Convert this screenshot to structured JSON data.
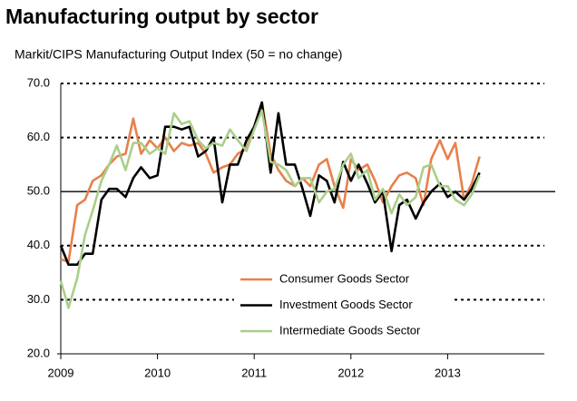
{
  "chart_data": {
    "type": "line",
    "title": "Manufacturing output by sector",
    "subtitle": "Markit/CIPS Manufacturing Output Index (50 = no change)",
    "x": [
      2009,
      2009.08,
      2009.17,
      2009.25,
      2009.33,
      2009.42,
      2009.5,
      2009.58,
      2009.67,
      2009.75,
      2009.83,
      2009.92,
      2010,
      2010.08,
      2010.17,
      2010.25,
      2010.33,
      2010.42,
      2010.5,
      2010.58,
      2010.67,
      2010.75,
      2010.83,
      2010.92,
      2011,
      2011.08,
      2011.17,
      2011.25,
      2011.33,
      2011.42,
      2011.5,
      2011.58,
      2011.67,
      2011.75,
      2011.83,
      2011.92,
      2012,
      2012.08,
      2012.17,
      2012.25,
      2012.33,
      2012.42,
      2012.5,
      2012.58,
      2012.67,
      2012.75,
      2012.83,
      2012.92,
      2013,
      2013.08,
      2013.17,
      2013.25,
      2013.33
    ],
    "series": [
      {
        "name": "Consumer Goods Sector",
        "color": "#e8804a",
        "values": [
          37.5,
          37,
          47.5,
          48.5,
          52,
          53,
          55,
          56.5,
          57,
          63.5,
          57,
          59.5,
          58,
          60,
          57.5,
          59,
          58.5,
          59,
          57,
          53.5,
          54.5,
          55,
          57,
          58,
          62,
          66.5,
          57,
          54,
          52,
          51,
          52.5,
          51,
          55,
          56,
          51,
          47,
          56,
          54,
          55,
          52,
          48,
          51,
          53,
          53.5,
          52.5,
          47.5,
          56,
          59.5,
          56,
          59,
          48.5,
          51.5,
          56.5
        ]
      },
      {
        "name": "Investment Goods Sector",
        "color": "#000000",
        "values": [
          40,
          36.5,
          36.5,
          38.5,
          38.5,
          48.5,
          50.5,
          50.5,
          49,
          52.5,
          54.5,
          52.5,
          53,
          62,
          62,
          61.5,
          62,
          56.5,
          57.5,
          60,
          48,
          55,
          55,
          59.5,
          62,
          66.5,
          53.5,
          64.5,
          55,
          55,
          50.5,
          45.5,
          53,
          52,
          48,
          55.5,
          52,
          55,
          51.5,
          48,
          50,
          39,
          47.5,
          48.5,
          45,
          48,
          50,
          51.5,
          49,
          50,
          48.5,
          50.5,
          53.5
        ]
      },
      {
        "name": "Intermediate Goods Sector",
        "color": "#a9cf8a",
        "values": [
          33.5,
          28.5,
          34,
          42,
          46.5,
          52,
          55,
          58.5,
          54,
          59,
          59,
          57,
          58,
          57,
          64.5,
          62.5,
          63,
          59.5,
          58,
          59,
          58.5,
          61.5,
          59.5,
          57.5,
          61.5,
          65,
          55.5,
          55,
          54,
          51,
          52.5,
          52.5,
          48,
          50,
          50.5,
          55,
          57,
          52.5,
          54,
          48.5,
          50.5,
          46,
          49.5,
          47.5,
          49,
          54.5,
          55,
          51,
          51,
          48.5,
          47.5,
          49.5,
          53
        ]
      }
    ],
    "xlim": [
      2009,
      2014
    ],
    "xticks": [
      2009,
      2010,
      2011,
      2012,
      2013
    ],
    "ylim": [
      20,
      70
    ],
    "yticks": [
      {
        "value": 20,
        "label": "20.0"
      },
      {
        "value": 30,
        "label": "30.0"
      },
      {
        "value": 40,
        "label": "40.0"
      },
      {
        "value": 50,
        "label": "50.0"
      },
      {
        "value": 60,
        "label": "60.0"
      },
      {
        "value": 70,
        "label": "70.0"
      }
    ],
    "reference_line": 50,
    "grid": true
  }
}
